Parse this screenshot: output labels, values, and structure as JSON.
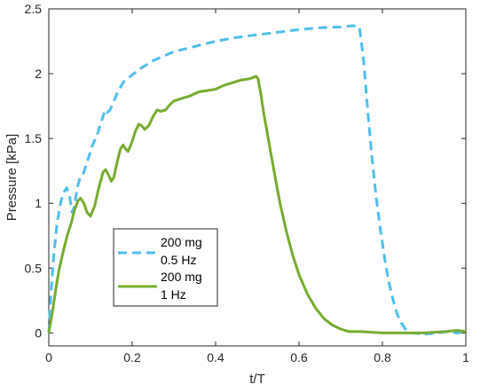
{
  "chart_data": {
    "type": "line",
    "xlabel": "t/T",
    "ylabel": "Pressure [kPa]",
    "xlim": [
      0,
      1
    ],
    "ylim": [
      -0.1,
      2.5
    ],
    "x_ticks": [
      "0",
      "0.2",
      "0.4",
      "0.6",
      "0.8",
      "1"
    ],
    "y_ticks": [
      "0",
      "0.5",
      "1",
      "1.5",
      "2",
      "2.5"
    ],
    "x_tick_values": [
      0,
      0.2,
      0.4,
      0.6,
      0.8,
      1
    ],
    "y_tick_values": [
      0,
      0.5,
      1,
      1.5,
      2,
      2.5
    ],
    "grid": false,
    "legend_position": "lower-left",
    "series": [
      {
        "name_lines": [
          "200 mg",
          "0.5 Hz"
        ],
        "color": "#4DBEEE",
        "style": "dashed",
        "points": [
          [
            0,
            0.0
          ],
          [
            0.005,
            0.3
          ],
          [
            0.012,
            0.6
          ],
          [
            0.02,
            0.85
          ],
          [
            0.028,
            1.0
          ],
          [
            0.035,
            1.08
          ],
          [
            0.043,
            1.12
          ],
          [
            0.05,
            1.05
          ],
          [
            0.056,
            0.93
          ],
          [
            0.062,
            0.98
          ],
          [
            0.068,
            1.12
          ],
          [
            0.075,
            1.2
          ],
          [
            0.082,
            1.22
          ],
          [
            0.09,
            1.3
          ],
          [
            0.098,
            1.38
          ],
          [
            0.105,
            1.45
          ],
          [
            0.115,
            1.52
          ],
          [
            0.125,
            1.62
          ],
          [
            0.135,
            1.72
          ],
          [
            0.14,
            1.7
          ],
          [
            0.147,
            1.72
          ],
          [
            0.155,
            1.78
          ],
          [
            0.165,
            1.86
          ],
          [
            0.18,
            1.94
          ],
          [
            0.2,
            1.99
          ],
          [
            0.22,
            2.04
          ],
          [
            0.25,
            2.1
          ],
          [
            0.3,
            2.17
          ],
          [
            0.35,
            2.21
          ],
          [
            0.4,
            2.25
          ],
          [
            0.45,
            2.28
          ],
          [
            0.5,
            2.3
          ],
          [
            0.55,
            2.32
          ],
          [
            0.6,
            2.34
          ],
          [
            0.65,
            2.355
          ],
          [
            0.7,
            2.36
          ],
          [
            0.73,
            2.37
          ],
          [
            0.745,
            2.36
          ],
          [
            0.755,
            2.1
          ],
          [
            0.765,
            1.7
          ],
          [
            0.775,
            1.35
          ],
          [
            0.785,
            1.05
          ],
          [
            0.795,
            0.8
          ],
          [
            0.805,
            0.58
          ],
          [
            0.815,
            0.4
          ],
          [
            0.825,
            0.26
          ],
          [
            0.835,
            0.15
          ],
          [
            0.845,
            0.08
          ],
          [
            0.855,
            0.03
          ],
          [
            0.87,
            0.0
          ],
          [
            0.9,
            -0.01
          ],
          [
            0.93,
            0.0
          ],
          [
            0.96,
            0.01
          ],
          [
            0.98,
            0.0
          ],
          [
            1.0,
            0.01
          ]
        ]
      },
      {
        "name_lines": [
          "200 mg",
          "1 Hz"
        ],
        "color": "#77AC30",
        "style": "solid",
        "points": [
          [
            0,
            0.0
          ],
          [
            0.008,
            0.15
          ],
          [
            0.016,
            0.32
          ],
          [
            0.024,
            0.48
          ],
          [
            0.034,
            0.62
          ],
          [
            0.044,
            0.75
          ],
          [
            0.054,
            0.85
          ],
          [
            0.062,
            0.95
          ],
          [
            0.07,
            1.02
          ],
          [
            0.076,
            1.04
          ],
          [
            0.084,
            1.0
          ],
          [
            0.092,
            0.93
          ],
          [
            0.1,
            0.9
          ],
          [
            0.11,
            0.98
          ],
          [
            0.12,
            1.12
          ],
          [
            0.13,
            1.24
          ],
          [
            0.136,
            1.26
          ],
          [
            0.143,
            1.22
          ],
          [
            0.15,
            1.17
          ],
          [
            0.156,
            1.2
          ],
          [
            0.164,
            1.32
          ],
          [
            0.172,
            1.42
          ],
          [
            0.178,
            1.45
          ],
          [
            0.184,
            1.42
          ],
          [
            0.19,
            1.4
          ],
          [
            0.198,
            1.46
          ],
          [
            0.208,
            1.56
          ],
          [
            0.216,
            1.61
          ],
          [
            0.222,
            1.6
          ],
          [
            0.23,
            1.57
          ],
          [
            0.24,
            1.6
          ],
          [
            0.25,
            1.67
          ],
          [
            0.26,
            1.72
          ],
          [
            0.268,
            1.71
          ],
          [
            0.28,
            1.72
          ],
          [
            0.29,
            1.76
          ],
          [
            0.3,
            1.79
          ],
          [
            0.32,
            1.81
          ],
          [
            0.34,
            1.83
          ],
          [
            0.36,
            1.86
          ],
          [
            0.38,
            1.87
          ],
          [
            0.4,
            1.88
          ],
          [
            0.42,
            1.91
          ],
          [
            0.44,
            1.93
          ],
          [
            0.46,
            1.95
          ],
          [
            0.48,
            1.96
          ],
          [
            0.49,
            1.97
          ],
          [
            0.497,
            1.98
          ],
          [
            0.502,
            1.96
          ],
          [
            0.508,
            1.85
          ],
          [
            0.515,
            1.7
          ],
          [
            0.525,
            1.52
          ],
          [
            0.535,
            1.34
          ],
          [
            0.545,
            1.16
          ],
          [
            0.555,
            0.99
          ],
          [
            0.57,
            0.78
          ],
          [
            0.585,
            0.6
          ],
          [
            0.6,
            0.45
          ],
          [
            0.62,
            0.3
          ],
          [
            0.64,
            0.19
          ],
          [
            0.66,
            0.11
          ],
          [
            0.68,
            0.06
          ],
          [
            0.7,
            0.03
          ],
          [
            0.72,
            0.01
          ],
          [
            0.75,
            0.01
          ],
          [
            0.8,
            0.0
          ],
          [
            0.85,
            0.0
          ],
          [
            0.9,
            0.0
          ],
          [
            0.95,
            0.01
          ],
          [
            0.98,
            0.02
          ],
          [
            1.0,
            0.01
          ]
        ]
      }
    ]
  }
}
